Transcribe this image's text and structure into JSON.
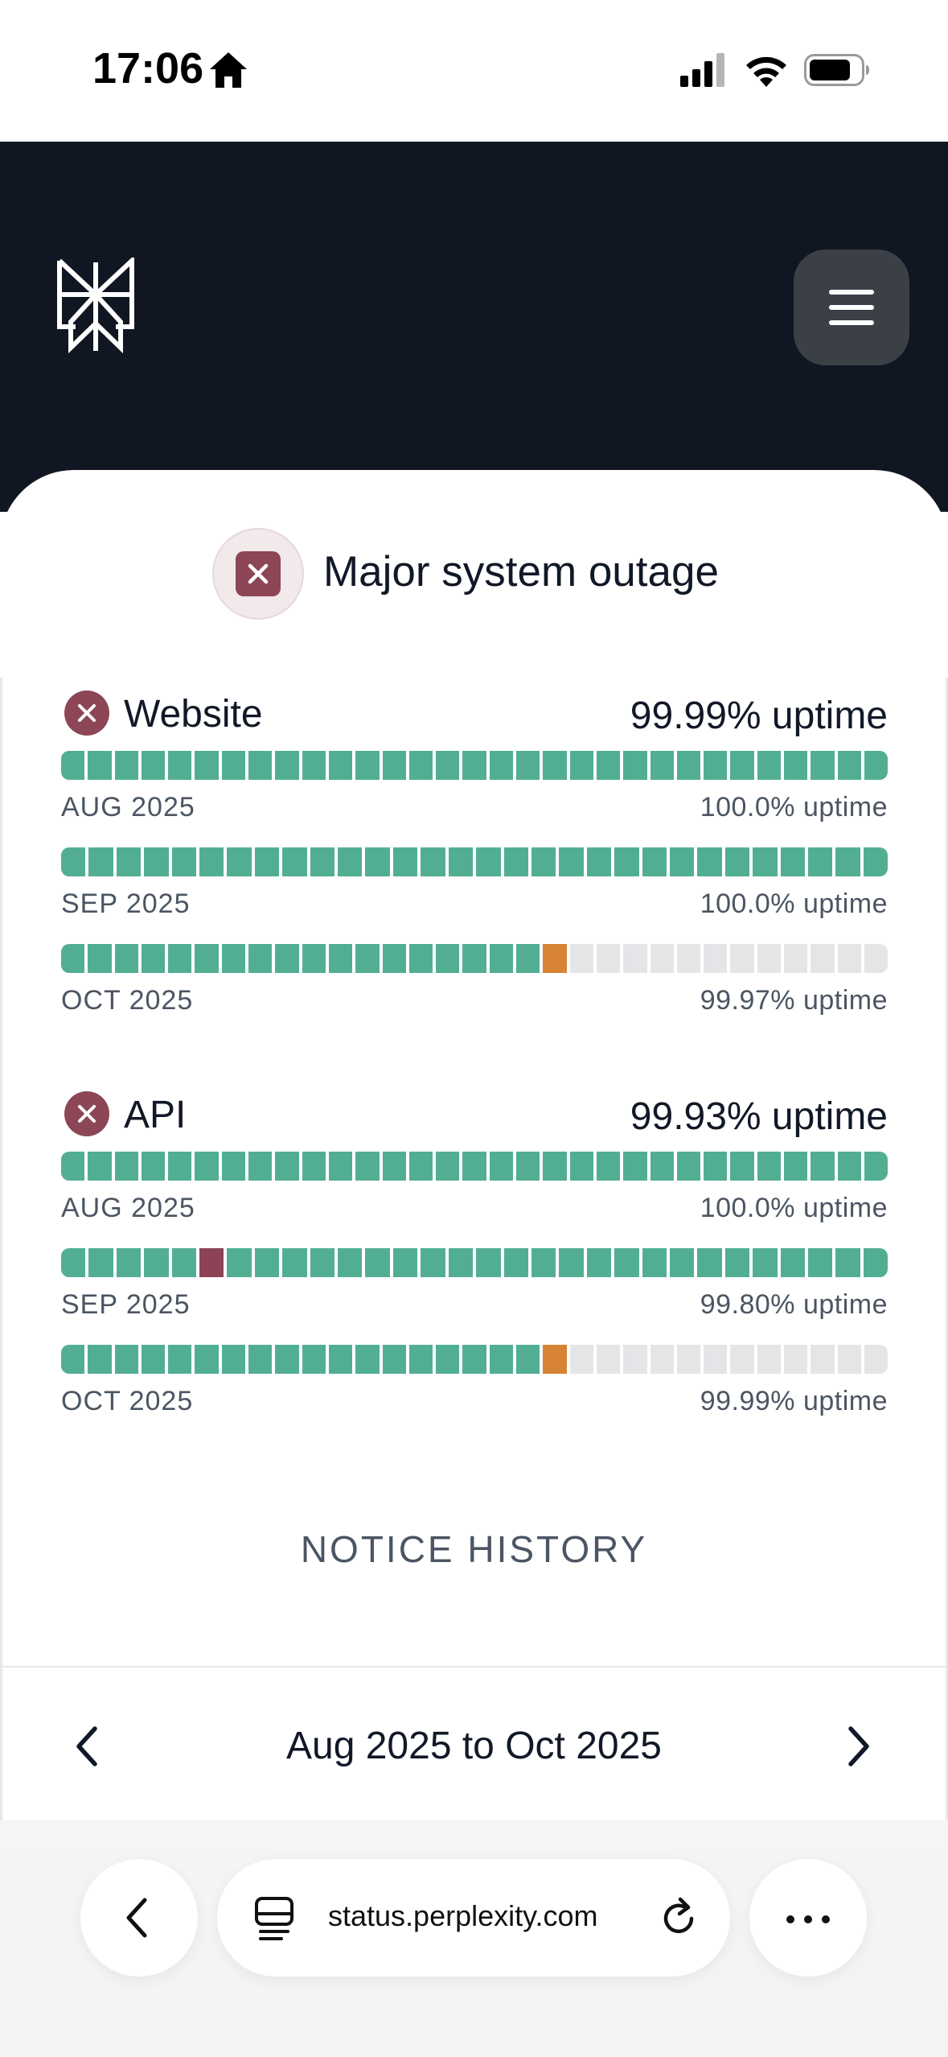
{
  "status_bar": {
    "time": "17:06"
  },
  "status": {
    "headline": "Major system outage"
  },
  "colors": {
    "header_bg": "#111722",
    "up": "#52ae93",
    "partial": "#d68335",
    "major": "#8b4355",
    "no_data": "#e4e5e7"
  },
  "services": [
    {
      "name": "Website",
      "uptime": "99.99% uptime",
      "months": [
        {
          "label": "AUG 2025",
          "uptime": "100.0% uptime",
          "days": "ggggggggggggggggggggggggggggggg"
        },
        {
          "label": "SEP 2025",
          "uptime": "100.0% uptime",
          "days": "gggggggggggggggggggggggggggggg"
        },
        {
          "label": "OCT 2025",
          "uptime": "99.97% uptime",
          "days": "ggggggggggggggggggoxxxxxxxxxxxx"
        }
      ]
    },
    {
      "name": "API",
      "uptime": "99.93% uptime",
      "months": [
        {
          "label": "AUG 2025",
          "uptime": "100.0% uptime",
          "days": "ggggggggggggggggggggggggggggggg"
        },
        {
          "label": "SEP 2025",
          "uptime": "99.80% uptime",
          "days": "gggggrgggggggggggggggggggggggg"
        },
        {
          "label": "OCT 2025",
          "uptime": "99.99% uptime",
          "days": "ggggggggggggggggggoxxxxxxxxxxxx"
        }
      ]
    }
  ],
  "notice_history": {
    "label": "NOTICE HISTORY"
  },
  "date_range": {
    "label": "Aug 2025 to Oct 2025"
  },
  "browser": {
    "url": "status.perplexity.com"
  },
  "icons": {
    "home": "home-icon",
    "signal": "cellular-signal-icon",
    "wifi": "wifi-icon",
    "battery": "battery-icon",
    "logo": "perplexity-logo",
    "menu": "hamburger-menu-icon",
    "outage": "close-icon",
    "prev": "chevron-left-icon",
    "next": "chevron-right-icon",
    "tabs": "tabs-icon",
    "reload": "reload-icon",
    "more": "more-icon"
  }
}
